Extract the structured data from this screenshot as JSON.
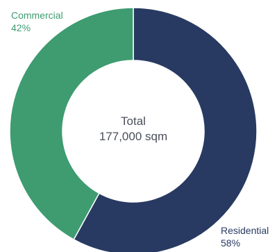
{
  "chart_data": {
    "type": "pie",
    "variant": "donut",
    "center_text": {
      "line1": "Total",
      "line2": "177,000 sqm"
    },
    "slices": [
      {
        "label": "Residential",
        "percent_label": "58%",
        "value": 58,
        "color": "#283a62"
      },
      {
        "label": "Commercial",
        "percent_label": "42%",
        "value": 42,
        "color": "#3e9c70"
      }
    ],
    "legend": "none"
  }
}
